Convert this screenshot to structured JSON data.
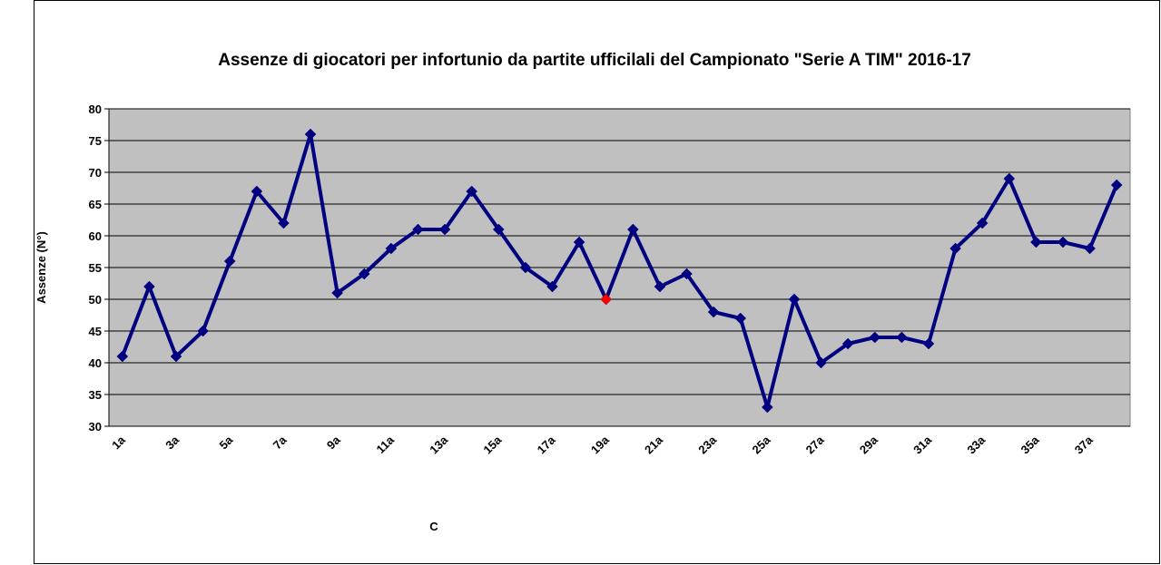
{
  "chart_data": {
    "type": "line",
    "title": "Assenze di giocatori per infortunio da partite ufficilali del Campionato  \"Serie A TIM\" 2016-17",
    "x_label": "C",
    "y_label": "Assenze (N°)",
    "categories": [
      "1a",
      null,
      "3a",
      null,
      "5a",
      null,
      "7a",
      null,
      "9a",
      null,
      "11a",
      null,
      "13a",
      null,
      "15a",
      null,
      "17a",
      null,
      "19a",
      null,
      "21a",
      null,
      "23a",
      null,
      "25a",
      null,
      "27a",
      null,
      "29a",
      null,
      "31a",
      null,
      "33a",
      null,
      "35a",
      null,
      "37a",
      null
    ],
    "series": [
      {
        "name": "Assenze",
        "color": "#000080",
        "values": [
          41,
          52,
          41,
          45,
          56,
          67,
          62,
          76,
          51,
          54,
          58,
          61,
          61,
          67,
          61,
          55,
          52,
          59,
          50,
          61,
          52,
          54,
          48,
          47,
          33,
          50,
          40,
          43,
          44,
          44,
          43,
          58,
          62,
          69,
          59,
          59,
          58,
          68
        ]
      }
    ],
    "highlight": {
      "category": "19a",
      "color": "#ff0000"
    },
    "ylim": [
      30,
      80
    ],
    "yticks": [
      30,
      35,
      40,
      45,
      50,
      55,
      60,
      65,
      70,
      75,
      80
    ],
    "grid": true,
    "plot_background": "#c0c0c0"
  }
}
